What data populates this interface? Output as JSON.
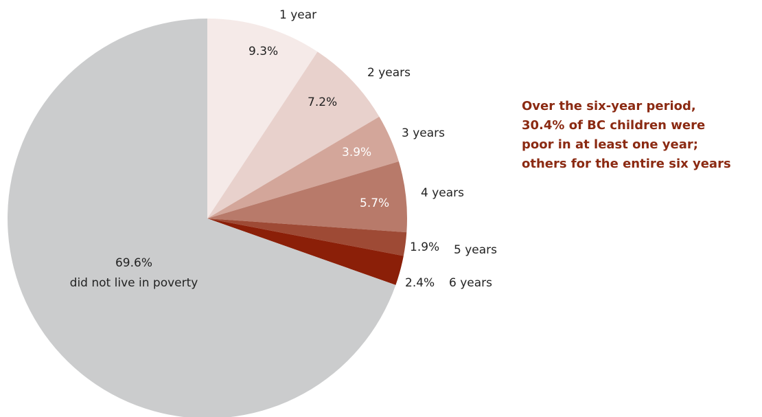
{
  "chart_data": {
    "type": "pie",
    "start_angle_deg": 0,
    "direction": "clockwise",
    "slices": [
      {
        "category": "1 year",
        "value": 9.3,
        "value_label": "9.3%",
        "color": "#f5eae8",
        "value_label_color": "#222222"
      },
      {
        "category": "2 years",
        "value": 7.2,
        "value_label": "7.2%",
        "color": "#e8d1cc",
        "value_label_color": "#222222"
      },
      {
        "category": "3 years",
        "value": 3.9,
        "value_label": "3.9%",
        "color": "#d3a69a",
        "value_label_color": "#ffffff"
      },
      {
        "category": "4 years",
        "value": 5.7,
        "value_label": "5.7%",
        "color": "#b87a6a",
        "value_label_color": "#ffffff"
      },
      {
        "category": "5 years",
        "value": 1.9,
        "value_label": "1.9%",
        "color": "#9e4a35",
        "value_label_color": "#222222"
      },
      {
        "category": "6 years",
        "value": 2.4,
        "value_label": "2.4%",
        "color": "#8b1f08",
        "value_label_color": "#222222"
      },
      {
        "category": "did not live in poverty",
        "value": 69.6,
        "value_label": "69.6%",
        "color": "#cbcccd",
        "value_label_color": "#222222"
      }
    ]
  },
  "note": {
    "lines": [
      "Over the six-year period,",
      "30.4% of BC children were",
      "poor in at least one year;",
      "others for the entire six years"
    ],
    "color": "#8b2a12"
  }
}
